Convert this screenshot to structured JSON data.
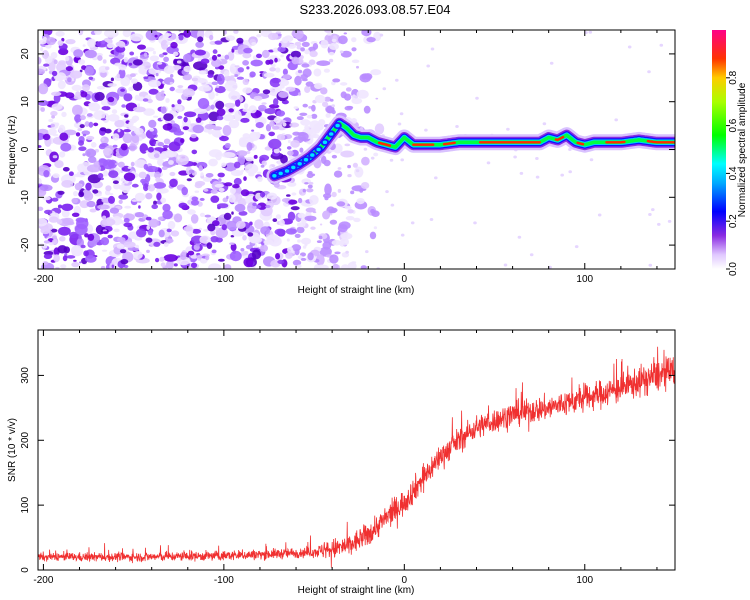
{
  "title": "S233.2026.093.08.57.E04",
  "colors": {
    "snr_line": "#f03030",
    "spectral_ramp": [
      "#ffffff",
      "#e8d8ff",
      "#b070ff",
      "#7b10f0",
      "#0000ff",
      "#00ffff",
      "#00ff00",
      "#ffff00",
      "#ff0000",
      "#ff00aa"
    ]
  },
  "chart_data": [
    {
      "type": "heatmap",
      "panel": "spectrogram",
      "xlabel": "Height of straight line (km)",
      "ylabel": "Frequency (Hz)",
      "xlim": [
        -203,
        150
      ],
      "ylim": [
        -25,
        25
      ],
      "xticks": [
        -200,
        -100,
        0,
        100
      ],
      "yticks": [
        -20,
        -10,
        0,
        10,
        20
      ],
      "noise_region_x": [
        -203,
        -45
      ],
      "ridge": {
        "x": [
          -72,
          -65,
          -58,
          -52,
          -46,
          -40,
          -36,
          -32,
          -28,
          -24,
          -20,
          -15,
          -10,
          -5,
          0,
          5,
          10,
          20,
          30,
          40,
          50,
          60,
          70,
          75,
          80,
          85,
          90,
          95,
          100,
          105,
          110,
          120,
          130,
          140,
          150
        ],
        "freq": [
          -5.5,
          -4.5,
          -3.0,
          -1.5,
          0.5,
          3.5,
          5.5,
          4.5,
          3.0,
          2.5,
          2.5,
          1.5,
          1.0,
          0.5,
          2.5,
          1.0,
          1.0,
          1.0,
          1.5,
          1.5,
          1.5,
          1.5,
          1.5,
          1.5,
          2.5,
          2.0,
          3.0,
          1.5,
          1.0,
          1.5,
          1.5,
          1.5,
          2.0,
          1.5,
          1.5
        ]
      },
      "colorbar": {
        "label": "Normalized spectral amplitude",
        "range": [
          0.0,
          1.0
        ],
        "ticks": [
          "0.0",
          "0.2",
          "0.4",
          "0.6",
          "0.8"
        ]
      }
    },
    {
      "type": "line",
      "panel": "snr",
      "xlabel": "Height of straight line (km)",
      "ylabel": "SNR (10 * v/v)",
      "xlim": [
        -203,
        150
      ],
      "ylim": [
        0,
        370
      ],
      "xticks": [
        -200,
        -100,
        0,
        100
      ],
      "yticks": [
        0,
        100,
        200,
        300
      ],
      "trend": {
        "x": [
          -203,
          -150,
          -100,
          -70,
          -50,
          -40,
          -30,
          -20,
          -10,
          0,
          10,
          20,
          30,
          40,
          60,
          80,
          100,
          120,
          140,
          150
        ],
        "snr": [
          20,
          20,
          22,
          25,
          28,
          32,
          38,
          55,
          80,
          105,
          140,
          175,
          200,
          220,
          240,
          250,
          265,
          280,
          300,
          305
        ]
      },
      "noise_amplitude": {
        "x": [
          -203,
          -50,
          -40,
          -20,
          0,
          40,
          100,
          150
        ],
        "amp": [
          14,
          18,
          35,
          40,
          45,
          40,
          45,
          55
        ]
      }
    }
  ]
}
